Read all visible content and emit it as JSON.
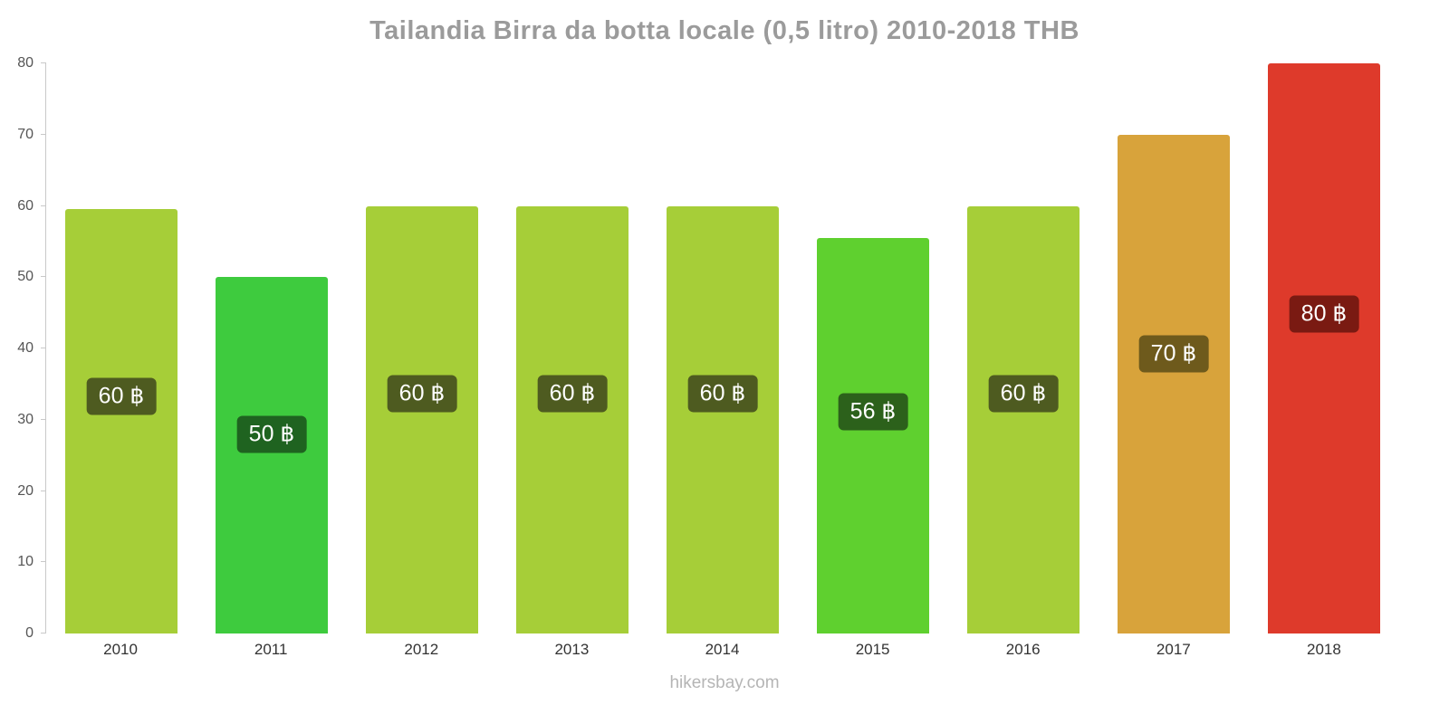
{
  "page": {
    "watermark": "hikersbay.com"
  },
  "chart_data": {
    "type": "bar",
    "title": "Tailandia Birra da botta locale (0,5 litro) 2010-2018 THB",
    "categories": [
      "2010",
      "2011",
      "2012",
      "2013",
      "2014",
      "2015",
      "2016",
      "2017",
      "2018"
    ],
    "values": [
      59.5,
      50,
      60,
      60,
      60,
      55.5,
      60,
      70,
      80
    ],
    "value_labels": [
      "60 ฿",
      "50 ฿",
      "60 ฿",
      "60 ฿",
      "60 ฿",
      "56 ฿",
      "60 ฿",
      "70 ฿",
      "80 ฿"
    ],
    "bar_colors": [
      "#A6CE38",
      "#3ECB3E",
      "#A6CE38",
      "#A6CE38",
      "#A6CE38",
      "#5FD02F",
      "#A6CE38",
      "#D8A33B",
      "#DE3A2B"
    ],
    "label_bg_colors": [
      "#4E5B20",
      "#1F6320",
      "#4E5B20",
      "#4E5B20",
      "#4E5B20",
      "#2C611B",
      "#4E5B20",
      "#6E5A1C",
      "#7A1A12"
    ],
    "xlabel": "",
    "ylabel": "",
    "ylim": [
      0,
      80
    ],
    "yticks": [
      0,
      10,
      20,
      30,
      40,
      50,
      60,
      70,
      80
    ],
    "grid": false,
    "legend": false
  }
}
